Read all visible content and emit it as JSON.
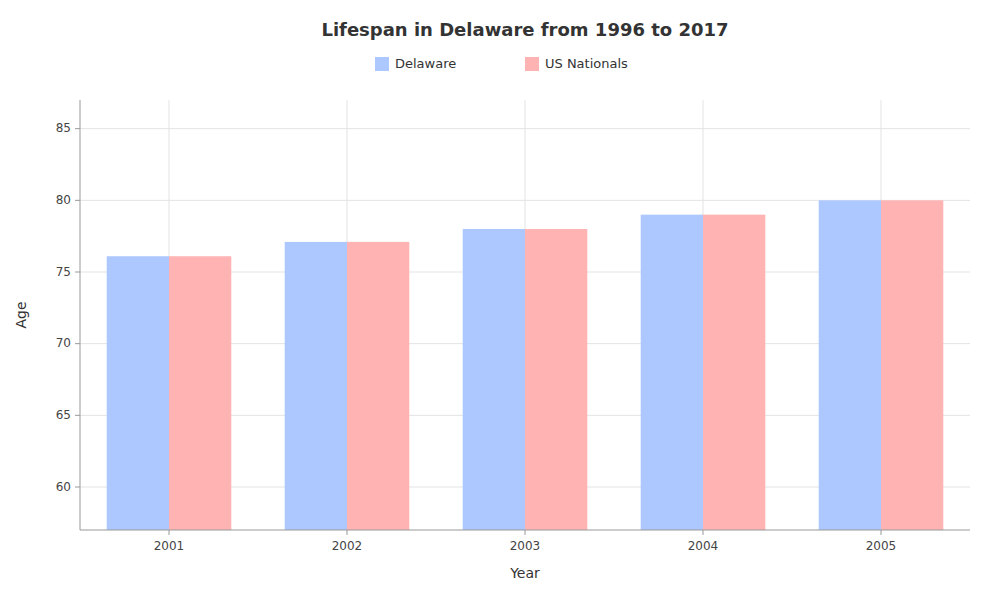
{
  "chart_data": {
    "type": "bar",
    "title": "Lifespan in Delaware from 1996 to 2017",
    "x_label": "Year",
    "y_label": "Age",
    "categories": [
      "2001",
      "2002",
      "2003",
      "2004",
      "2005"
    ],
    "series": [
      {
        "name": "Delaware",
        "color": "#adc8ff",
        "values": [
          76.1,
          77.1,
          78.0,
          79.0,
          80.0
        ]
      },
      {
        "name": "US Nationals",
        "color": "#ffb3b3",
        "values": [
          76.1,
          77.1,
          78.0,
          79.0,
          80.0
        ]
      }
    ],
    "ylim": [
      57,
      87
    ],
    "yticks": [
      60,
      65,
      70,
      75,
      80,
      85
    ],
    "grid": true,
    "legend": "top"
  }
}
